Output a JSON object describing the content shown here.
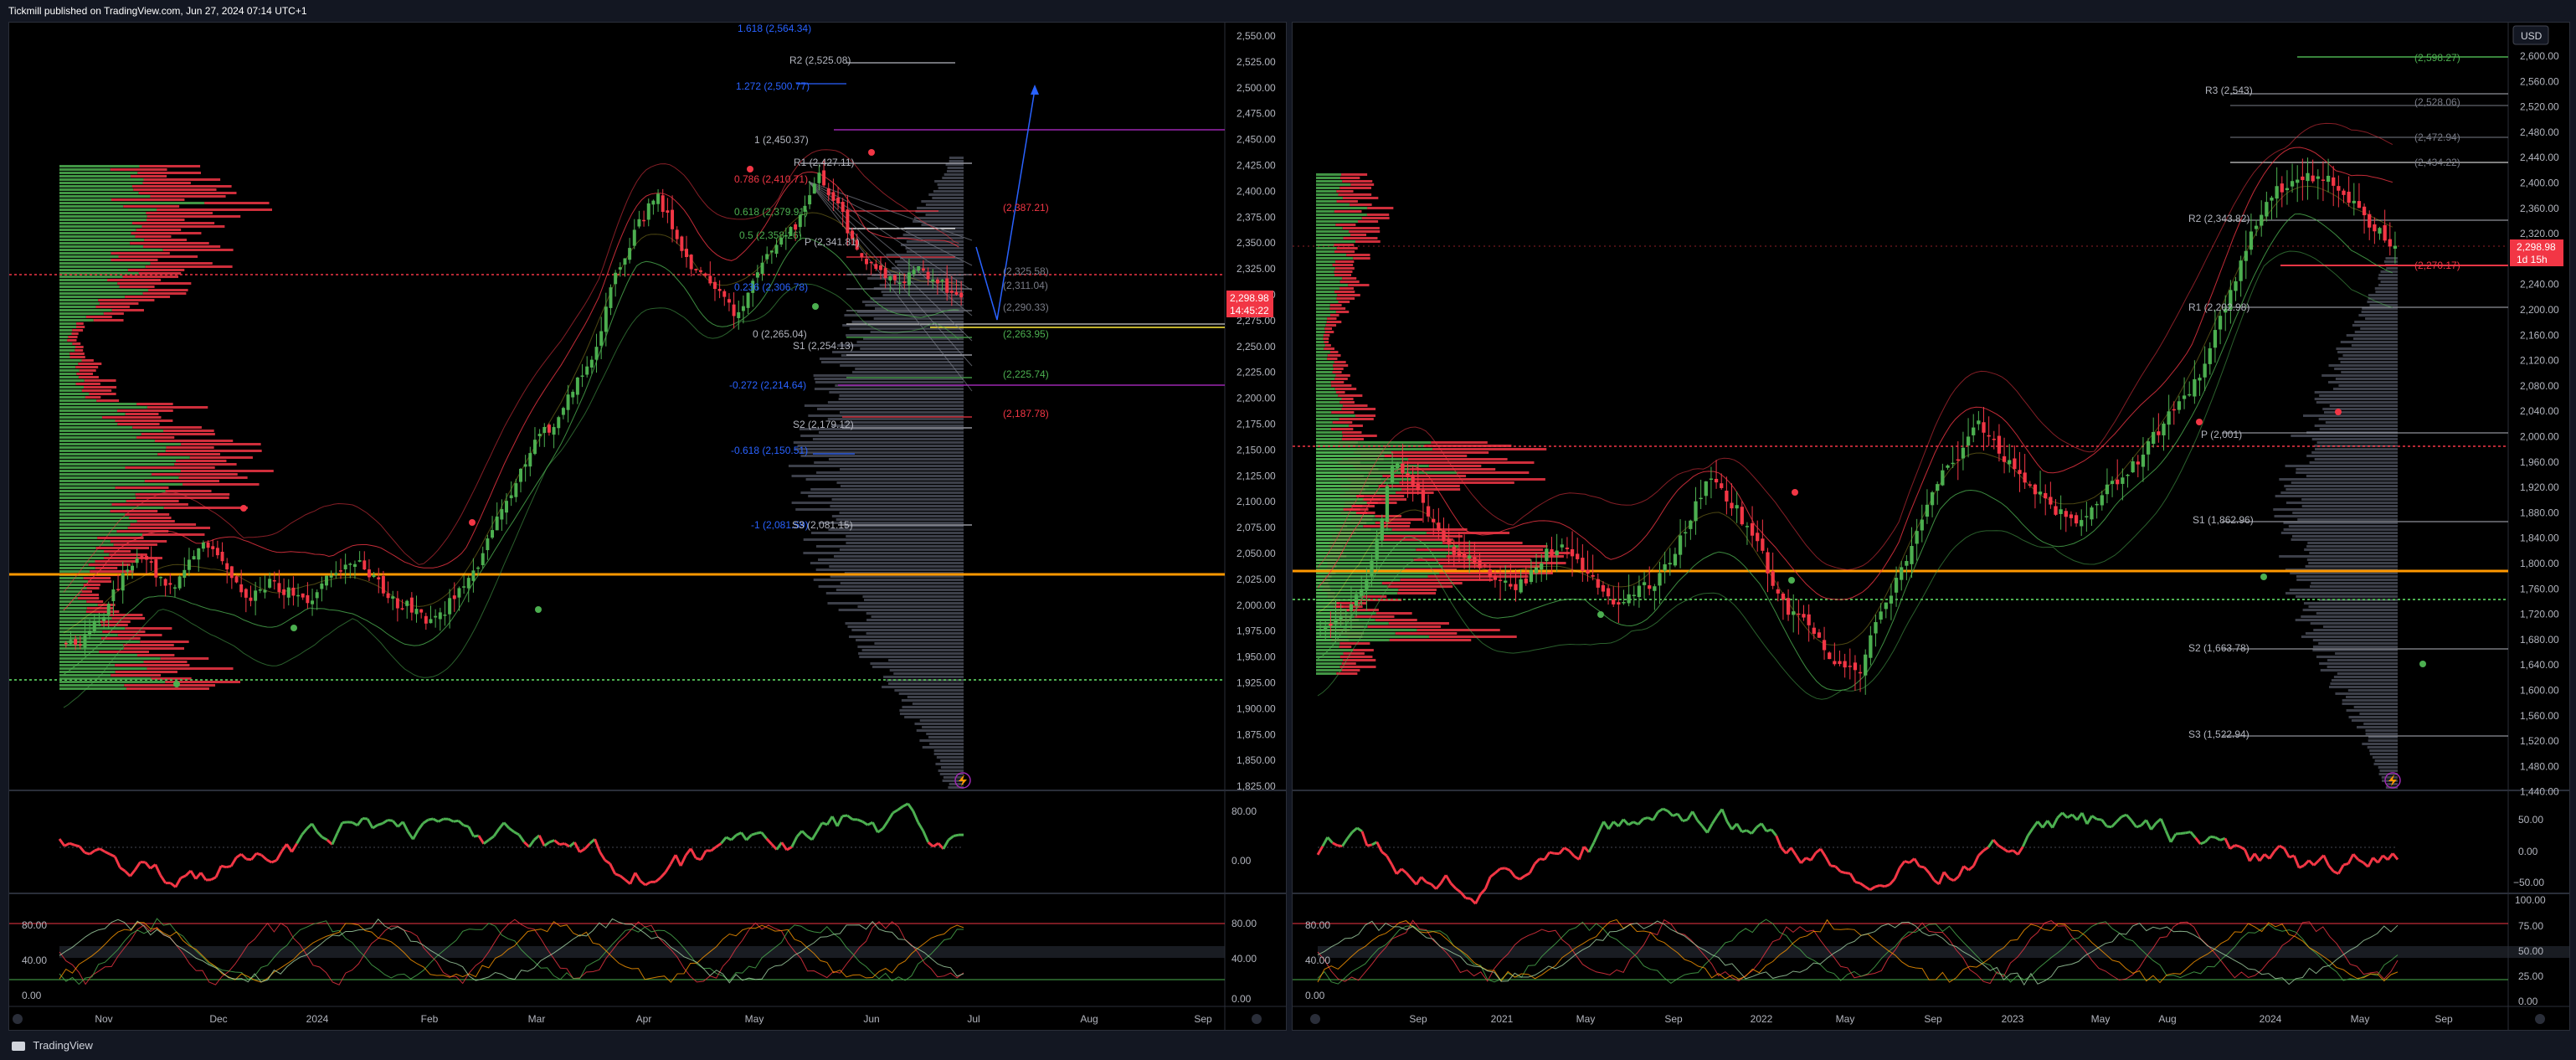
{
  "header": {
    "publish_text": "Tickmill published on TradingView.com, Jun 27, 2024 07:14 UTC+1"
  },
  "footer": {
    "brand": "TradingView"
  },
  "colors": {
    "up": "#4caf50",
    "down": "#f23645",
    "level_orange": "#ff9800",
    "fib_blue": "#2962ff",
    "pivot_gray": "#b2b5be"
  },
  "left_chart": {
    "price_axis": [
      "2,550.00",
      "2,525.00",
      "2,500.00",
      "2,475.00",
      "2,450.00",
      "2,425.00",
      "2,400.00",
      "2,375.00",
      "2,350.00",
      "2,325.00",
      "2,300.00",
      "2,275.00",
      "2,250.00",
      "2,225.00",
      "2,200.00",
      "2,175.00",
      "2,150.00",
      "2,125.00",
      "2,100.00",
      "2,075.00",
      "2,050.00",
      "2,025.00",
      "2,000.00",
      "1,975.00",
      "1,950.00",
      "1,925.00",
      "1,900.00",
      "1,875.00",
      "1,850.00",
      "1,825.00"
    ],
    "current_price": "2,298.98",
    "countdown": "14:45:22",
    "time_axis": [
      "Nov",
      "Dec",
      "2024",
      "Feb",
      "Mar",
      "Apr",
      "May",
      "Jun",
      "Jul",
      "Aug",
      "Sep"
    ],
    "rsi_axis": [
      "80.00",
      "0.00"
    ],
    "stoch_axis": [
      "80.00",
      "40.00",
      "0.00"
    ],
    "stoch_axis_left": [
      "80.00",
      "40.00",
      "0.00"
    ],
    "annotations": {
      "fib_1618": "1.618 (2,564.34)",
      "r2": "R2 (2,525.08)",
      "fib_1272": "1.272 (2,500.77)",
      "fib_1": "1 (2,450.37)",
      "r1": "R1 (2,427.11)",
      "fib_0786": "0.786 (2,410.71)",
      "fib_0618": "0.618 (2,379.91)",
      "fib_05": "0.5 (2,358.26)",
      "pivot": "P (2,341.81)",
      "fib_0236": "0.236 (2,306.78)",
      "fib_0": "0 (2,265.04)",
      "s1": "S1 (2,254.13)",
      "fib_m0272": "-0.272 (2,214.64)",
      "s2": "S2 (2,179.12)",
      "fib_m0618": "-0.618 (2,150.51)",
      "fib_m1": "-1 (2,081.59)",
      "s3": "S3 (2,081.15)",
      "lvl_2387": "(2,387.21)",
      "lvl_2325": "(2,325.58)",
      "lvl_2311": "(2,311.04)",
      "lvl_2290": "(2,290.33)",
      "lvl_2263": "(2,263.95)",
      "lvl_2225": "(2,225.74)",
      "lvl_2187": "(2,187.78)"
    }
  },
  "right_chart": {
    "currency": "USD",
    "price_axis": [
      "2,600.00",
      "2,560.00",
      "2,520.00",
      "2,480.00",
      "2,440.00",
      "2,400.00",
      "2,360.00",
      "2,320.00",
      "2,280.00",
      "2,240.00",
      "2,200.00",
      "2,160.00",
      "2,120.00",
      "2,080.00",
      "2,040.00",
      "2,000.00",
      "1,960.00",
      "1,920.00",
      "1,880.00",
      "1,840.00",
      "1,800.00",
      "1,760.00",
      "1,720.00",
      "1,680.00",
      "1,640.00",
      "1,600.00",
      "1,560.00",
      "1,520.00",
      "1,480.00",
      "1,440.00"
    ],
    "current_price": "2,298.98",
    "countdown": "1d 15h",
    "time_axis": [
      "Sep",
      "2021",
      "May",
      "Sep",
      "2022",
      "May",
      "Sep",
      "2023",
      "May",
      "Aug",
      "2024",
      "May",
      "Sep"
    ],
    "rsi_axis": [
      "50.00",
      "0.00",
      "−50.00"
    ],
    "stoch_axis": [
      "100.00",
      "75.00",
      "50.00",
      "25.00",
      "0.00"
    ],
    "stoch_axis_left": [
      "80.00",
      "40.00",
      "0.00"
    ],
    "annotations": {
      "lvl_2598": "(2,598.27)",
      "r3": "R3 (2,543)",
      "lvl_2528": "(2,528.06)",
      "lvl_2472": "(2,472.94)",
      "lvl_2434": "(2,434.22)",
      "r2": "R2 (2,343.82)",
      "lvl_2270": "(2,270.17)",
      "r1": "R1 (2,202.98)",
      "pivot": "P (2,001)",
      "s1": "S1 (1,862.96)",
      "s2": "S2 (1,663.78)",
      "s3": "S3 (1,522.94)"
    }
  }
}
